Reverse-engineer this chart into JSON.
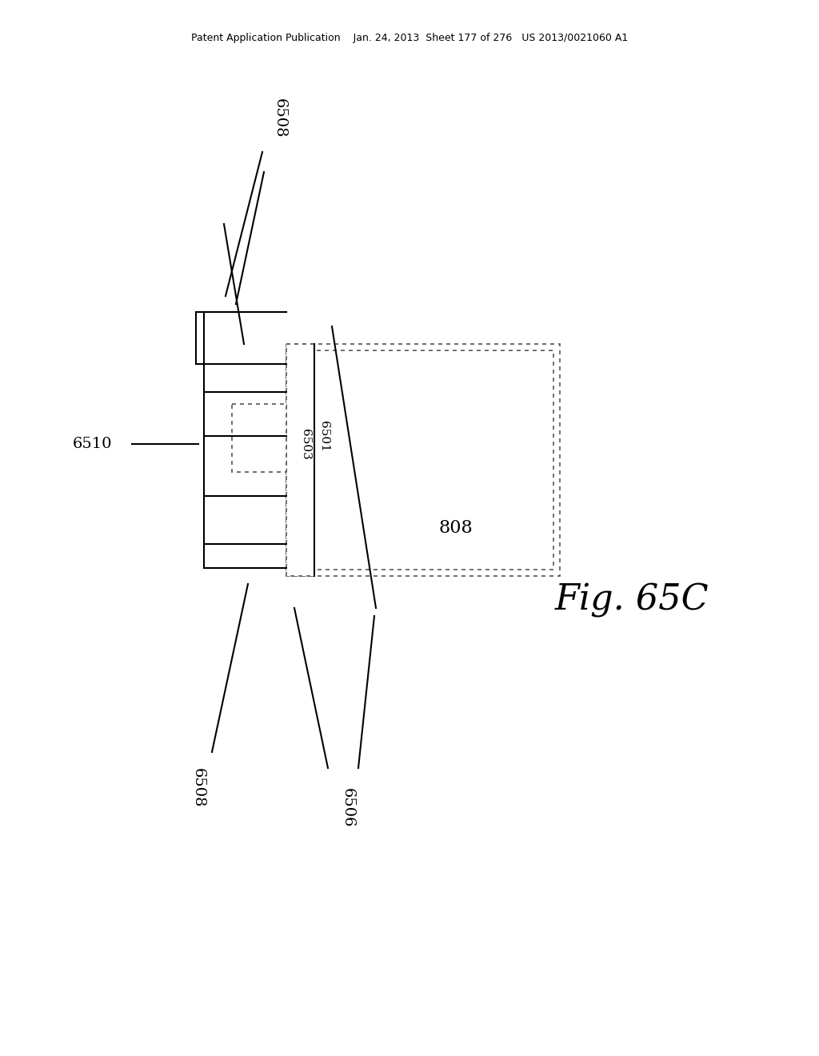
{
  "header": "Patent Application Publication    Jan. 24, 2013  Sheet 177 of 276   US 2013/0021060 A1",
  "fig_label": "Fig. 65C",
  "bg_color": "#ffffff",
  "lw": 1.5,
  "dot_lw": 1.2,
  "label_6508_top": "6508",
  "label_6510": "6510",
  "label_6503": "6503",
  "label_6501": "6501",
  "label_808": "808",
  "label_6506": "6506",
  "label_6508_bot": "6508"
}
